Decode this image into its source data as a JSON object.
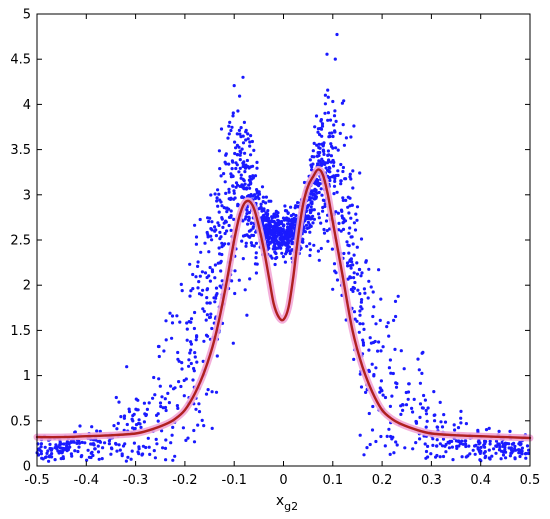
{
  "chart_data": {
    "type": "scatter",
    "xlabel": "x",
    "xlabel_subscript": "g2",
    "ylabel": "",
    "xlim": [
      -0.5,
      0.5
    ],
    "ylim": [
      0,
      5
    ],
    "xticks": [
      -0.5,
      -0.4,
      -0.3,
      -0.2,
      -0.1,
      0,
      0.1,
      0.2,
      0.3,
      0.4,
      0.5
    ],
    "xtick_labels": [
      "-0.5",
      "-0.4",
      "-0.3",
      "-0.2",
      "-0.1",
      "0",
      "0.1",
      "0.2",
      "0.3",
      "0.4",
      "0.5"
    ],
    "yticks": [
      0,
      0.5,
      1,
      1.5,
      2,
      2.5,
      3,
      3.5,
      4,
      4.5,
      5
    ],
    "ytick_labels": [
      "0",
      "0.5",
      "1",
      "1.5",
      "2",
      "2.5",
      "3",
      "3.5",
      "4",
      "4.5",
      "5"
    ],
    "grid": false,
    "colors": {
      "scatter": "#1a1aff",
      "curve": "#b02020",
      "curve_band": "#f2a6d6",
      "axes": "#000000",
      "background": "#ffffff"
    },
    "scatter_profile": {
      "x": [
        -0.5,
        -0.45,
        -0.4,
        -0.35,
        -0.3,
        -0.25,
        -0.2,
        -0.17,
        -0.14,
        -0.12,
        -0.1,
        -0.09,
        -0.08,
        -0.07,
        -0.06,
        -0.05,
        -0.04,
        -0.03,
        -0.02,
        -0.01,
        0,
        0.01,
        0.02,
        0.03,
        0.04,
        0.05,
        0.06,
        0.07,
        0.08,
        0.09,
        0.1,
        0.12,
        0.14,
        0.17,
        0.2,
        0.25,
        0.3,
        0.35,
        0.4,
        0.45,
        0.5
      ],
      "y_center": [
        0.18,
        0.2,
        0.23,
        0.27,
        0.35,
        0.55,
        0.9,
        1.4,
        2.1,
        2.7,
        3.1,
        3.2,
        3.15,
        3.0,
        2.85,
        2.7,
        2.65,
        2.6,
        2.58,
        2.55,
        2.55,
        2.55,
        2.58,
        2.62,
        2.7,
        2.85,
        3.05,
        3.2,
        3.3,
        3.3,
        3.2,
        2.85,
        2.2,
        1.4,
        0.9,
        0.55,
        0.35,
        0.27,
        0.23,
        0.2,
        0.18
      ],
      "y_spread": [
        0.07,
        0.08,
        0.1,
        0.15,
        0.3,
        0.45,
        0.55,
        0.6,
        0.6,
        0.55,
        0.5,
        0.45,
        0.4,
        0.35,
        0.3,
        0.2,
        0.15,
        0.12,
        0.12,
        0.12,
        0.12,
        0.12,
        0.12,
        0.12,
        0.15,
        0.2,
        0.3,
        0.35,
        0.4,
        0.45,
        0.5,
        0.55,
        0.6,
        0.6,
        0.55,
        0.45,
        0.3,
        0.15,
        0.1,
        0.08,
        0.07
      ],
      "point_count": 2000
    },
    "series": [
      {
        "x": [
          -0.5,
          -0.45,
          -0.4,
          -0.35,
          -0.3,
          -0.27,
          -0.24,
          -0.22,
          -0.2,
          -0.18,
          -0.16,
          -0.14,
          -0.12,
          -0.1,
          -0.09,
          -0.08,
          -0.07,
          -0.06,
          -0.05,
          -0.04,
          -0.03,
          -0.02,
          -0.01,
          0,
          0.01,
          0.02,
          0.03,
          0.04,
          0.05,
          0.06,
          0.07,
          0.08,
          0.09,
          0.1,
          0.12,
          0.14,
          0.16,
          0.18,
          0.2,
          0.22,
          0.24,
          0.27,
          0.3,
          0.35,
          0.4,
          0.45,
          0.5
        ],
        "y": [
          0.32,
          0.32,
          0.33,
          0.34,
          0.36,
          0.4,
          0.46,
          0.52,
          0.62,
          0.8,
          1.05,
          1.4,
          1.9,
          2.5,
          2.75,
          2.9,
          2.93,
          2.85,
          2.65,
          2.4,
          2.1,
          1.8,
          1.65,
          1.62,
          1.75,
          2.1,
          2.55,
          2.9,
          3.1,
          3.2,
          3.28,
          3.22,
          3.0,
          2.7,
          2.1,
          1.5,
          1.1,
          0.82,
          0.62,
          0.52,
          0.46,
          0.4,
          0.36,
          0.34,
          0.33,
          0.32,
          0.31
        ]
      }
    ]
  }
}
